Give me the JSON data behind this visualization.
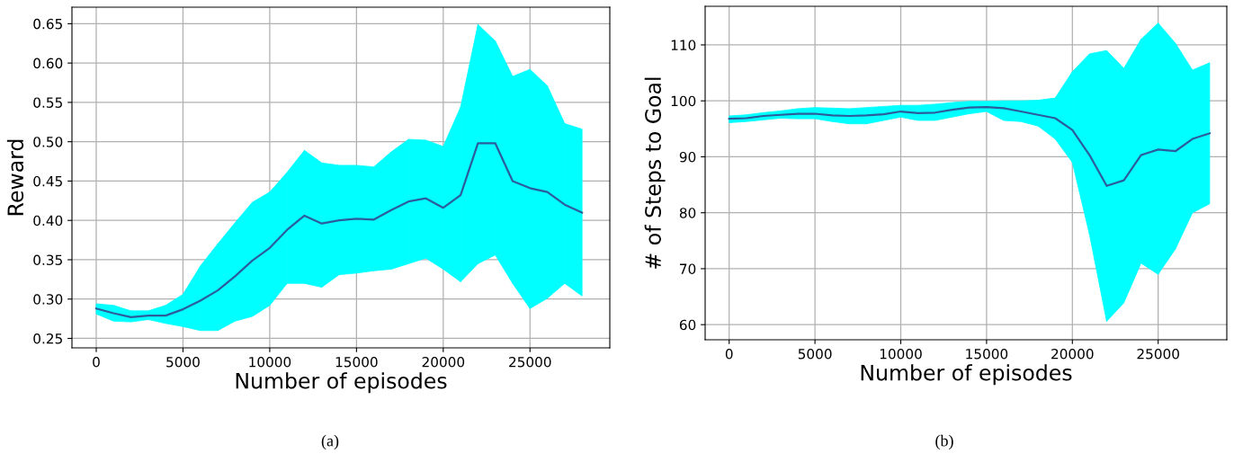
{
  "chart_data": [
    {
      "type": "line",
      "xlabel": "Number of episodes",
      "ylabel": "Reward",
      "annotations": [
        "(a)"
      ],
      "x": [
        0,
        1000,
        2000,
        3000,
        4000,
        5000,
        6000,
        7000,
        8000,
        9000,
        10000,
        11000,
        12000,
        13000,
        14000,
        15000,
        16000,
        17000,
        18000,
        19000,
        20000,
        21000,
        22000,
        23000,
        24000,
        25000,
        26000,
        27000,
        28000
      ],
      "xlim": [
        -1400,
        29600
      ],
      "ylim": [
        0.238,
        0.671
      ],
      "xticks": [
        0,
        5000,
        10000,
        15000,
        20000,
        25000
      ],
      "yticks": [
        0.25,
        {
          "value": 0.3,
          "label": "0.30"
        },
        0.35,
        {
          "value": 0.4,
          "label": "0.40"
        },
        0.45,
        {
          "value": 0.5,
          "label": "0.50"
        },
        0.55,
        {
          "value": 0.6,
          "label": "0.60"
        },
        0.65
      ],
      "grid": true,
      "marker": "none",
      "line_style": "solid",
      "series": [
        {
          "color": "#2b5d9c",
          "colors": [
            "#00ffff",
            "#00ffff",
            "#00ffff",
            "#00ffff",
            "#00ffff",
            "#00ffff",
            "#00ffff",
            "#00ffff",
            "#00ffff",
            "#00ffff",
            "#00ffff",
            "#00ffff",
            "#00ffff",
            "#00ffff",
            "#00ffff",
            "#00ffff",
            "#00ffff",
            "#00ffff",
            "#00ffff",
            "#00ffff",
            "#00ffff",
            "#00ffff",
            "#00ffff",
            "#00ffff",
            "#00ffff",
            "#00ffff",
            "#00ffff",
            "#00ffff",
            "#00ffff"
          ],
          "values": [
            0.288,
            0.282,
            0.277,
            0.279,
            0.279,
            0.287,
            0.298,
            0.311,
            0.329,
            0.349,
            0.365,
            0.388,
            0.406,
            0.396,
            0.4,
            0.402,
            0.401,
            0.413,
            0.424,
            0.428,
            0.416,
            0.432,
            0.498,
            0.498,
            0.45,
            0.441,
            0.436,
            0.42,
            0.41
          ],
          "lower": [
            0.281,
            0.272,
            0.271,
            0.274,
            0.269,
            0.265,
            0.26,
            0.26,
            0.272,
            0.278,
            0.292,
            0.32,
            0.32,
            0.315,
            0.331,
            0.333,
            0.336,
            0.338,
            0.345,
            0.352,
            0.338,
            0.322,
            0.345,
            0.356,
            0.32,
            0.288,
            0.301,
            0.32,
            0.304
          ],
          "upper": [
            0.294,
            0.292,
            0.285,
            0.285,
            0.292,
            0.306,
            0.342,
            0.37,
            0.397,
            0.423,
            0.436,
            0.461,
            0.489,
            0.473,
            0.47,
            0.47,
            0.468,
            0.487,
            0.503,
            0.502,
            0.494,
            0.544,
            0.649,
            0.628,
            0.583,
            0.592,
            0.571,
            0.523,
            0.516
          ]
        }
      ]
    },
    {
      "type": "line",
      "xlabel": "Number of episodes",
      "ylabel": "# of Steps to Goal",
      "annotations": [
        "(b)"
      ],
      "x": [
        0,
        1000,
        2000,
        3000,
        4000,
        5000,
        6000,
        7000,
        8000,
        9000,
        10000,
        11000,
        12000,
        13000,
        14000,
        15000,
        16000,
        17000,
        18000,
        19000,
        20000,
        21000,
        22000,
        23000,
        24000,
        25000,
        26000,
        27000,
        28000
      ],
      "xlim": [
        -1400,
        29000
      ],
      "ylim": [
        57.3,
        116.9
      ],
      "xticks": [
        0,
        5000,
        10000,
        15000,
        20000,
        25000
      ],
      "yticks": [
        60,
        70,
        80,
        90,
        100,
        110
      ],
      "grid": true,
      "marker": "none",
      "line_style": "solid",
      "series": [
        {
          "color": "#2b5d9c",
          "colors": [
            "#00ffff",
            "#00ffff",
            "#00ffff",
            "#00ffff",
            "#00ffff",
            "#00ffff",
            "#00ffff",
            "#00ffff",
            "#00ffff",
            "#00ffff",
            "#00ffff",
            "#00ffff",
            "#00ffff",
            "#00ffff",
            "#00ffff",
            "#00ffff",
            "#00ffff",
            "#00ffff",
            "#00ffff",
            "#00ffff",
            "#00ffff",
            "#00ffff",
            "#00ffff",
            "#00ffff",
            "#00ffff",
            "#00ffff",
            "#00ffff",
            "#00ffff",
            "#00ffff"
          ],
          "values": [
            96.8,
            96.9,
            97.3,
            97.5,
            97.7,
            97.7,
            97.4,
            97.3,
            97.4,
            97.6,
            98.1,
            97.8,
            97.9,
            98.4,
            98.8,
            98.9,
            98.7,
            98.1,
            97.5,
            96.9,
            94.8,
            90.3,
            84.8,
            85.8,
            90.3,
            91.3,
            91.0,
            93.2,
            94.2
          ],
          "lower": [
            96.1,
            96.3,
            96.6,
            96.9,
            96.8,
            96.8,
            96.3,
            95.9,
            95.9,
            96.5,
            97.1,
            96.5,
            96.5,
            97.1,
            97.7,
            98.1,
            96.5,
            96.3,
            95.5,
            93.2,
            89.0,
            76.1,
            60.6,
            63.9,
            71.0,
            69.0,
            73.5,
            80.0,
            81.6
          ],
          "upper": [
            97.3,
            97.5,
            97.9,
            98.2,
            98.6,
            98.8,
            98.7,
            98.6,
            98.8,
            99.0,
            99.2,
            99.2,
            99.4,
            99.7,
            99.9,
            99.9,
            100.0,
            100.0,
            100.1,
            100.5,
            105.2,
            108.4,
            109.0,
            105.8,
            111.0,
            113.9,
            110.3,
            105.5,
            106.8
          ]
        }
      ]
    }
  ]
}
